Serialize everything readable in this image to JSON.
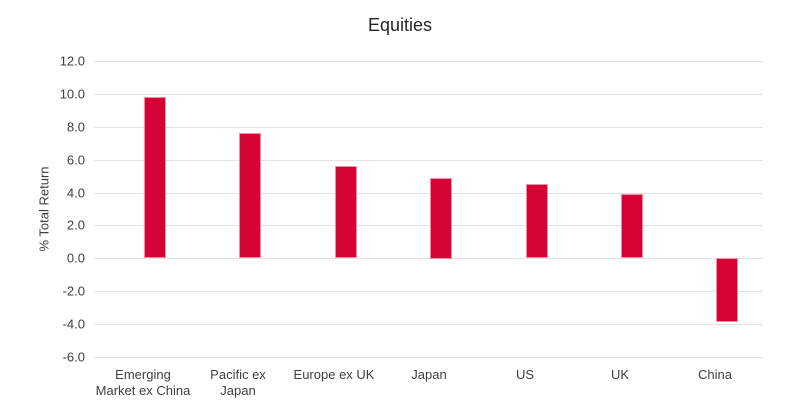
{
  "chart_data": {
    "type": "bar",
    "title": "Equities",
    "xlabel": "",
    "ylabel": "% Total Return",
    "categories": [
      "Emerging Market ex China",
      "Pacific ex Japan",
      "Europe ex UK",
      "Japan",
      "US",
      "UK",
      "China"
    ],
    "category_display_lines": [
      [
        "Emerging",
        "Market ex China"
      ],
      [
        "Pacific ex",
        "Japan"
      ],
      [
        "Europe ex UK"
      ],
      [
        "Japan"
      ],
      [
        "US"
      ],
      [
        "UK"
      ],
      [
        "China"
      ]
    ],
    "values": [
      9.8,
      7.6,
      5.6,
      4.9,
      4.5,
      3.9,
      -3.9
    ],
    "ylim": [
      -6.0,
      12.0
    ],
    "ytick_interval": 2.0,
    "yticks": [
      12.0,
      10.0,
      8.0,
      6.0,
      4.0,
      2.0,
      0.0,
      -2.0,
      -4.0,
      -6.0
    ],
    "ytick_label_format": "one_decimal",
    "grid": true,
    "legend": "none",
    "colors": {
      "bar_fill": "#d40334",
      "bar_border": "#ed8ea6",
      "gridline": "#e2e2e2",
      "axis_text": "#3f3f3f",
      "title_text": "#262626",
      "background": "#ffffff"
    }
  }
}
